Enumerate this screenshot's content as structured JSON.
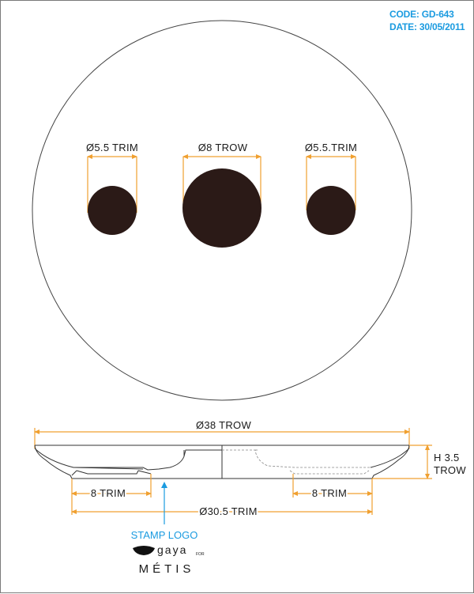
{
  "header": {
    "code": "CODE: GD-643",
    "date": "DATE: 30/05/2011"
  },
  "top_view": {
    "hole_left_label": "Ø5.5 TRIM",
    "hole_center_label": "Ø8 TROW",
    "hole_right_label": "Ø5.5.TRIM"
  },
  "section_view": {
    "overall_diameter_label": "Ø38 TROW",
    "height_label_line1": "H 3.5",
    "height_label_line2": "TROW",
    "foot_left_label": "8 TRIM",
    "foot_right_label": "8 TRIM",
    "base_diameter_label": "Ø30.5 TRIM"
  },
  "stamp": {
    "label": "STAMP LOGO",
    "brand": "gaya",
    "for_text": "FOR",
    "sub_brand": "MÉTIS"
  },
  "colors": {
    "header_blue": "#1b9be0",
    "dimension_orange": "#f0a030",
    "hole_fill": "#2b1a17"
  }
}
